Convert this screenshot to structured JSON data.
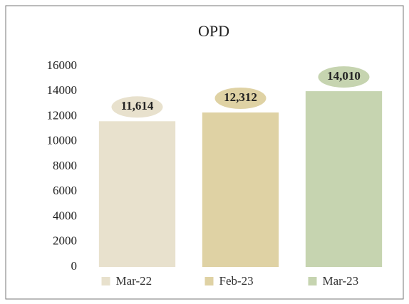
{
  "chart_data": {
    "type": "bar",
    "title": "OPD",
    "categories": [
      "Mar-22",
      "Feb-23",
      "Mar-23"
    ],
    "values": [
      11614,
      12312,
      14010
    ],
    "value_labels": [
      "11,614",
      "12,312",
      "14,010"
    ],
    "colors": [
      "#e8e1cd",
      "#dfd2a4",
      "#c6d4b0"
    ],
    "ylim": [
      0,
      16000
    ],
    "yticks": [
      0,
      2000,
      4000,
      6000,
      8000,
      10000,
      12000,
      14000,
      16000
    ],
    "grid": false,
    "legend": "bottom"
  }
}
